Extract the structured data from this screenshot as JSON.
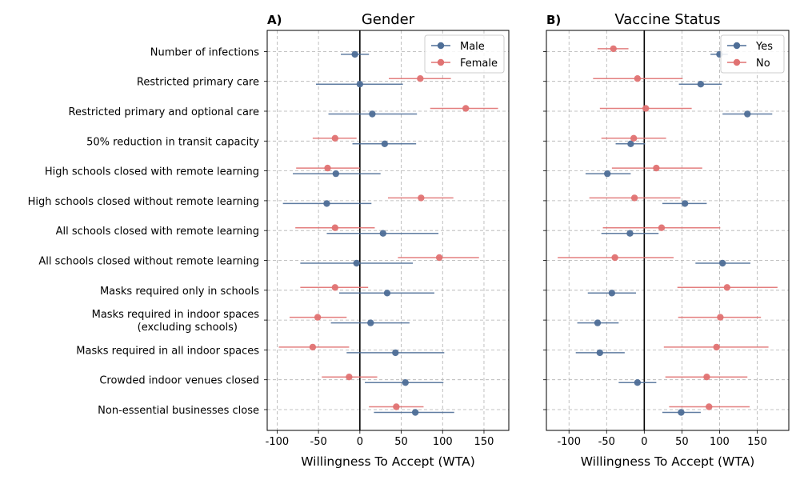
{
  "colors": {
    "male": "#4e6e97",
    "female": "#e07272",
    "yes": "#4e6e97",
    "no": "#e07272"
  },
  "chart_data": [
    {
      "type": "errorbar",
      "panel_label": "A)",
      "title": "Gender",
      "xlabel": "Willingness To Accept (WTA)",
      "xlim": [
        -112,
        180
      ],
      "xticks": [
        -100,
        -50,
        0,
        50,
        100,
        150
      ],
      "grid": true,
      "legend": "top-right",
      "categories": [
        "Number of infections",
        "Restricted primary care",
        "Restricted primary and optional care",
        "50% reduction in transit capacity",
        "High schools closed with remote learning",
        "High schools closed without remote learning",
        "All schools closed with remote learning",
        "All schools closed without remote learning",
        "Masks required only in schools",
        "Masks required in indoor spaces\n(excluding schools)",
        "Masks required in all indoor spaces",
        "Crowded indoor venues closed",
        "Non-essential businesses close"
      ],
      "series": [
        {
          "name": "Male",
          "color_key": "male",
          "offset": 1,
          "values": [
            -6,
            0,
            15,
            30,
            -29,
            -40,
            28,
            -4,
            33,
            13,
            43,
            55,
            67
          ],
          "lower": [
            -23,
            -53,
            -38,
            -9,
            -81,
            -93,
            -40,
            -72,
            -25,
            -35,
            -16,
            6,
            17
          ],
          "upper": [
            11,
            52,
            69,
            68,
            25,
            14,
            95,
            64,
            90,
            60,
            102,
            101,
            114
          ]
        },
        {
          "name": "Female",
          "color_key": "female",
          "offset": -1,
          "values": [
            null,
            73,
            128,
            -30,
            -39,
            74,
            -30,
            96,
            -30,
            -51,
            -57,
            -13,
            44
          ],
          "lower": [
            null,
            35,
            85,
            -57,
            -77,
            34,
            -78,
            46,
            -72,
            -85,
            -98,
            -46,
            11
          ],
          "upper": [
            null,
            110,
            167,
            -4,
            0,
            113,
            18,
            144,
            10,
            -16,
            -13,
            21,
            77
          ]
        }
      ]
    },
    {
      "type": "errorbar",
      "panel_label": "B)",
      "title": "Vaccine Status",
      "xlabel": "Willingness To Accept (WTA)",
      "xlim": [
        -130,
        192
      ],
      "xticks": [
        -100,
        -50,
        0,
        50,
        100,
        150
      ],
      "grid": true,
      "legend": "top-right",
      "categories": [
        "Number of infections",
        "Restricted primary care",
        "Restricted primary and optional care",
        "50% reduction in transit capacity",
        "High schools closed with remote learning",
        "High schools closed without remote learning",
        "All schools closed with remote learning",
        "All schools closed without remote learning",
        "Masks required only in schools",
        "Masks required in indoor spaces\n(excluding schools)",
        "Masks required in all indoor spaces",
        "Crowded indoor venues closed",
        "Non-essential businesses close"
      ],
      "series": [
        {
          "name": "Yes",
          "color_key": "yes",
          "offset": 1,
          "values": [
            100,
            75,
            137,
            -18,
            -49,
            54,
            -19,
            104,
            -43,
            -62,
            -59,
            -9,
            49
          ],
          "lower": [
            88,
            46,
            104,
            -38,
            -78,
            24,
            -57,
            68,
            -75,
            -89,
            -91,
            -34,
            24
          ],
          "upper": [
            111,
            103,
            170,
            1,
            -18,
            83,
            19,
            141,
            -11,
            -34,
            -26,
            16,
            75
          ]
        },
        {
          "name": "No",
          "color_key": "no",
          "offset": -1,
          "values": [
            -41,
            -9,
            2,
            -14,
            16,
            -13,
            23,
            -39,
            110,
            101,
            96,
            83,
            86
          ],
          "lower": [
            -62,
            -68,
            -59,
            -57,
            -43,
            -73,
            -55,
            -115,
            44,
            45,
            26,
            28,
            33
          ],
          "upper": [
            -21,
            51,
            63,
            29,
            77,
            48,
            101,
            39,
            177,
            155,
            165,
            137,
            140
          ]
        }
      ]
    }
  ]
}
